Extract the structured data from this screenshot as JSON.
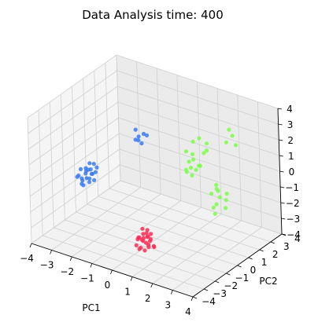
{
  "chart_data": {
    "type": "scatter",
    "title": "Data Analysis time: 400",
    "xlabel": "PC1",
    "ylabel": "PC2",
    "zlabel": "",
    "xlim": [
      -4,
      4
    ],
    "ylim": [
      -4,
      4
    ],
    "zlim": [
      -4,
      4
    ],
    "xticks": [
      "−4",
      "−3",
      "−2",
      "−1",
      "0",
      "1",
      "2",
      "3",
      "4"
    ],
    "yticks": [
      "−4",
      "−3",
      "−2",
      "−1",
      "0",
      "1",
      "2",
      "3",
      "4"
    ],
    "zticks": [
      "−4",
      "−3",
      "−2",
      "−1",
      "0",
      "1",
      "2",
      "3",
      "4"
    ],
    "grid": true,
    "series": [
      {
        "color": "#3a7bf5",
        "points": [
          [
            -2.6,
            -1.5,
            -0.2
          ],
          [
            -2.4,
            -1.4,
            0.1
          ],
          [
            -2.5,
            -1.6,
            -0.4
          ],
          [
            -2.7,
            -1.3,
            0.0
          ],
          [
            -2.3,
            -1.7,
            -0.3
          ],
          [
            -2.8,
            -1.5,
            -0.6
          ],
          [
            -2.2,
            -1.2,
            0.2
          ],
          [
            -2.5,
            -1.9,
            -0.7
          ],
          [
            -2.9,
            -1.4,
            -0.1
          ],
          [
            -2.4,
            -1.1,
            0.3
          ],
          [
            -2.6,
            -1.8,
            -0.5
          ],
          [
            -2.3,
            -1.5,
            -0.1
          ],
          [
            -2.7,
            -1.7,
            -0.8
          ],
          [
            -2.5,
            -1.3,
            0.4
          ],
          [
            -2.8,
            -1.9,
            -0.3
          ],
          [
            -2.2,
            -1.6,
            0.0
          ],
          [
            -2.6,
            -1.2,
            -0.9
          ],
          [
            -2.4,
            -1.8,
            0.2
          ],
          [
            -2.9,
            -1.6,
            -0.4
          ],
          [
            -2.3,
            -1.3,
            -0.6
          ],
          [
            -2.1,
            -1.5,
            0.1
          ],
          [
            -2.7,
            -1.1,
            -0.2
          ],
          [
            -1.2,
            0.8,
            1.6
          ],
          [
            -1.0,
            0.9,
            1.8
          ],
          [
            -1.3,
            0.7,
            1.4
          ],
          [
            -0.9,
            1.0,
            1.7
          ],
          [
            -1.1,
            0.6,
            1.5
          ],
          [
            -1.4,
            0.9,
            1.9
          ],
          [
            -1.0,
            0.7,
            1.3
          ]
        ]
      },
      {
        "color": "#ff2d55",
        "points": [
          [
            0.6,
            -2.2,
            -2.6
          ],
          [
            0.8,
            -2.0,
            -2.8
          ],
          [
            0.5,
            -2.4,
            -2.5
          ],
          [
            0.9,
            -2.3,
            -3.0
          ],
          [
            0.7,
            -2.1,
            -2.3
          ],
          [
            0.4,
            -2.0,
            -2.9
          ],
          [
            1.0,
            -2.5,
            -2.7
          ],
          [
            0.6,
            -2.6,
            -3.1
          ],
          [
            0.8,
            -1.9,
            -2.4
          ],
          [
            0.5,
            -2.3,
            -3.2
          ],
          [
            0.9,
            -2.1,
            -2.6
          ],
          [
            0.7,
            -2.4,
            -2.2
          ],
          [
            0.3,
            -2.2,
            -2.8
          ],
          [
            1.1,
            -2.2,
            -2.9
          ],
          [
            0.6,
            -1.8,
            -2.7
          ],
          [
            0.8,
            -2.6,
            -2.5
          ],
          [
            0.4,
            -2.5,
            -3.0
          ],
          [
            1.0,
            -2.0,
            -3.1
          ],
          [
            0.7,
            -2.3,
            -3.3
          ],
          [
            0.5,
            -2.1,
            -2.1
          ],
          [
            0.9,
            -2.4,
            -2.3
          ],
          [
            0.6,
            -2.0,
            -3.0
          ],
          [
            0.8,
            -2.2,
            -2.0
          ],
          [
            0.4,
            -2.3,
            -2.6
          ]
        ]
      },
      {
        "color": "#7dff4a",
        "points": [
          [
            2.0,
            0.5,
            3.0
          ],
          [
            2.2,
            0.8,
            2.6
          ],
          [
            1.8,
            0.3,
            2.8
          ],
          [
            2.3,
            0.6,
            2.3
          ],
          [
            1.5,
            0.2,
            2.1
          ],
          [
            1.7,
            0.4,
            1.9
          ],
          [
            2.1,
            0.7,
            2.0
          ],
          [
            1.9,
            0.1,
            1.8
          ],
          [
            1.4,
            0.6,
            1.2
          ],
          [
            1.6,
            0.4,
            1.0
          ],
          [
            1.8,
            0.5,
            0.9
          ],
          [
            1.5,
            0.2,
            0.8
          ],
          [
            1.9,
            0.7,
            1.1
          ],
          [
            1.7,
            0.3,
            0.6
          ],
          [
            1.3,
            0.5,
            0.7
          ],
          [
            2.0,
            0.4,
            1.3
          ],
          [
            2.5,
            1.0,
            0.0
          ],
          [
            2.4,
            1.2,
            -0.4
          ],
          [
            2.7,
            0.8,
            -0.2
          ],
          [
            2.6,
            1.1,
            -0.8
          ],
          [
            2.3,
            0.9,
            -0.6
          ],
          [
            2.8,
            1.3,
            -1.0
          ],
          [
            2.5,
            0.7,
            -1.3
          ],
          [
            2.7,
            1.4,
            -1.6
          ],
          [
            2.4,
            1.0,
            -1.9
          ],
          [
            2.6,
            0.8,
            -1.1
          ],
          [
            2.9,
            1.2,
            -0.5
          ],
          [
            2.5,
            2.0,
            2.2
          ],
          [
            2.7,
            2.2,
            2.6
          ],
          [
            2.6,
            2.1,
            3.0
          ],
          [
            2.8,
            2.3,
            2.0
          ]
        ]
      }
    ]
  }
}
